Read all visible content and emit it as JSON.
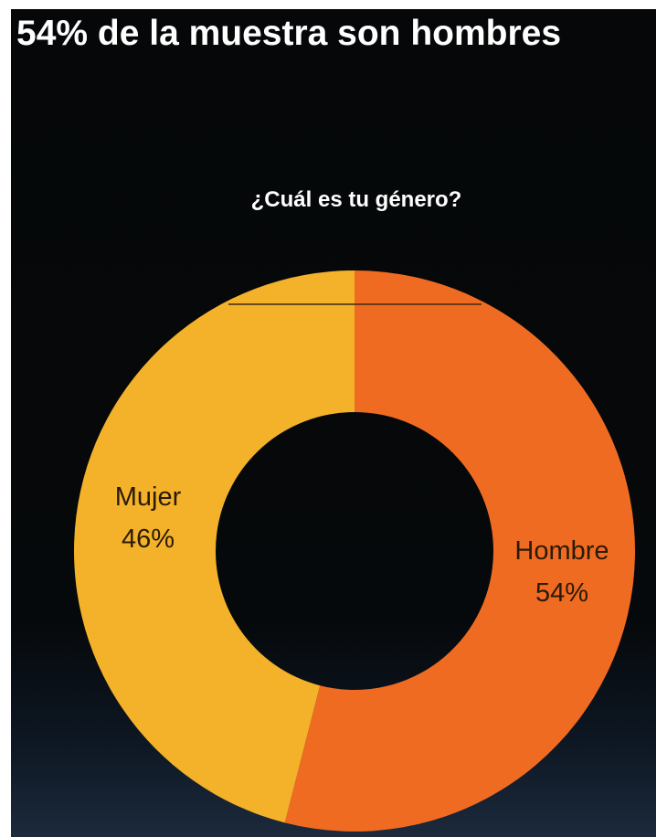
{
  "headline": "54% de la muestra son hombres",
  "colors": {
    "background": "#06090b",
    "hombre": "#f06b22",
    "mujer": "#f3b229",
    "text": "#ffffff"
  },
  "chart_data": {
    "type": "pie",
    "style": "donut",
    "title": "¿Cuál es tu género?",
    "start": "top, clockwise",
    "slices": [
      {
        "name": "Hombre",
        "value": 54,
        "label": "54%",
        "color": "#f06b22"
      },
      {
        "name": "Mujer",
        "value": 46,
        "label": "46%",
        "color": "#f3b229"
      }
    ]
  }
}
